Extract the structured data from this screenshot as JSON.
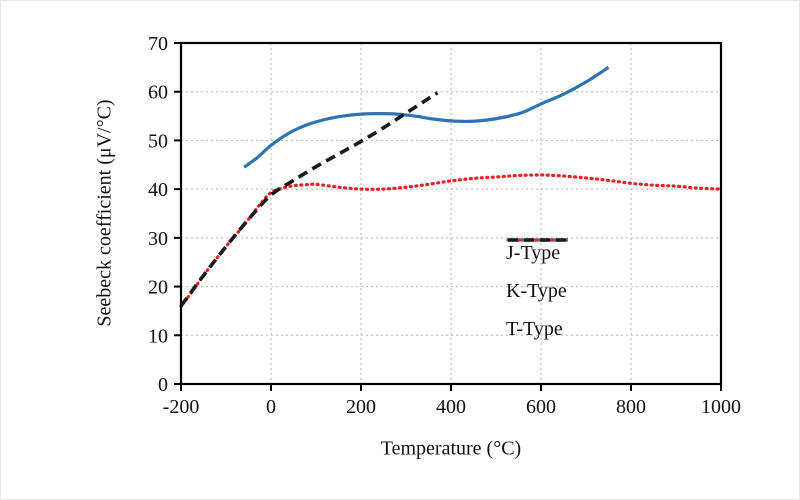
{
  "chart_data": {
    "type": "line",
    "title": "",
    "xlabel": "Temperature (°C)",
    "ylabel": "Seebeck coefficient (μV/°C)",
    "xlim": [
      -200,
      1000
    ],
    "ylim": [
      0,
      70
    ],
    "xticks": [
      -200,
      0,
      200,
      400,
      600,
      800,
      1000
    ],
    "yticks": [
      0,
      10,
      20,
      30,
      40,
      50,
      60,
      70
    ],
    "grid": true,
    "grid_color": "#b5b5b5",
    "axis_color": "#000000",
    "legend_position": "inside-right",
    "series": [
      {
        "name": "J-Type",
        "color": "#2e74b5",
        "style": "solid",
        "x": [
          -60,
          -30,
          0,
          40,
          80,
          120,
          160,
          200,
          240,
          280,
          320,
          360,
          400,
          440,
          480,
          520,
          560,
          600,
          650,
          700,
          750
        ],
        "y": [
          44.5,
          46.5,
          49,
          51.5,
          53.2,
          54.3,
          55,
          55.4,
          55.5,
          55.4,
          55,
          54.4,
          54,
          53.9,
          54.2,
          54.8,
          55.8,
          57.5,
          59.5,
          62,
          65
        ]
      },
      {
        "name": "K-Type",
        "color": "#e82127",
        "style": "dotted",
        "x": [
          -200,
          -175,
          -150,
          -125,
          -100,
          -75,
          -50,
          -25,
          0,
          25,
          50,
          75,
          100,
          150,
          200,
          250,
          300,
          350,
          400,
          450,
          500,
          550,
          600,
          650,
          700,
          750,
          800,
          850,
          900,
          950,
          1000
        ],
        "y": [
          16,
          19,
          22.3,
          25.3,
          28.2,
          31,
          33.8,
          36.8,
          39.3,
          40.2,
          40.7,
          40.9,
          41,
          40.4,
          40,
          40,
          40.4,
          41,
          41.7,
          42.2,
          42.5,
          42.8,
          42.9,
          42.7,
          42.3,
          41.8,
          41.2,
          40.8,
          40.6,
          40.2,
          40
        ]
      },
      {
        "name": "T-Type",
        "color": "#1a1a1a",
        "style": "dashed",
        "x": [
          -200,
          -150,
          -100,
          -50,
          0,
          50,
          100,
          150,
          200,
          250,
          300,
          340,
          370
        ],
        "y": [
          16,
          22.3,
          28.2,
          33.8,
          38.8,
          41.8,
          44.6,
          47.2,
          49.8,
          52.6,
          55.6,
          58,
          59.8
        ]
      }
    ]
  }
}
